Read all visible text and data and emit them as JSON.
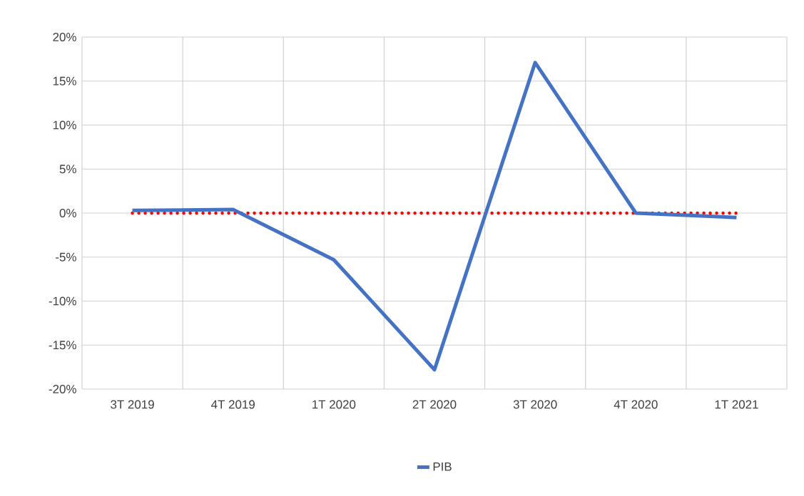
{
  "chart_data": {
    "type": "line",
    "categories": [
      "3T 2019",
      "4T 2019",
      "1T 2020",
      "2T 2020",
      "3T 2020",
      "4T 2020",
      "1T 2021"
    ],
    "series": [
      {
        "name": "PIB",
        "color": "#4472c4",
        "values": [
          0.3,
          0.4,
          -5.3,
          -17.8,
          17.1,
          0.0,
          -0.5
        ]
      }
    ],
    "ylim": [
      -20,
      20
    ],
    "yticks": [
      {
        "value": -20,
        "label": "-20%"
      },
      {
        "value": -15,
        "label": "-15%"
      },
      {
        "value": -10,
        "label": "-10%"
      },
      {
        "value": -5,
        "label": "-5%"
      },
      {
        "value": 0,
        "label": "0%"
      },
      {
        "value": 5,
        "label": "5%"
      },
      {
        "value": 10,
        "label": "10%"
      },
      {
        "value": 15,
        "label": "15%"
      },
      {
        "value": 20,
        "label": "20%"
      }
    ],
    "ref_lines": [
      {
        "axis": "y",
        "value": 0,
        "color": "#ff0000",
        "line_style": "dotted"
      }
    ],
    "grid": true,
    "legend": "bottom",
    "marker": "none",
    "line_style": "solid"
  }
}
